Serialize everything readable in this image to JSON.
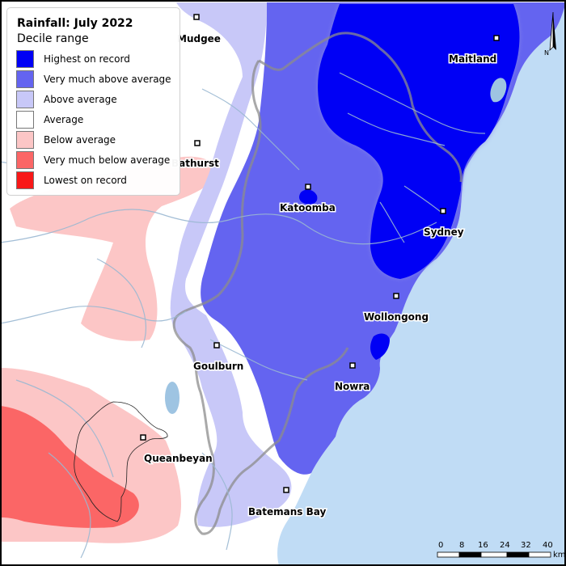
{
  "map": {
    "title": "Rainfall: July 2022",
    "subtitle": "Decile range",
    "legend": [
      {
        "label": "Highest on record",
        "color": "#0000f5"
      },
      {
        "label": "Very much above average",
        "color": "#6464f0"
      },
      {
        "label": "Above average",
        "color": "#c8c8f8"
      },
      {
        "label": "Average",
        "color": "#ffffff"
      },
      {
        "label": "Below average",
        "color": "#fcc6c6"
      },
      {
        "label": "Very much below average",
        "color": "#fb6666"
      },
      {
        "label": "Lowest on record",
        "color": "#f81818"
      }
    ],
    "towns": [
      {
        "name": "Mudgee"
      },
      {
        "name": "Maitland"
      },
      {
        "name": "Bathurst"
      },
      {
        "name": "Katoomba"
      },
      {
        "name": "Sydney"
      },
      {
        "name": "Wollongong"
      },
      {
        "name": "Goulburn"
      },
      {
        "name": "Nowra"
      },
      {
        "name": "Queanbeyan"
      },
      {
        "name": "Batemans Bay"
      }
    ],
    "north_label": "N",
    "scale": {
      "ticks": [
        "0",
        "8",
        "16",
        "24",
        "32",
        "40"
      ],
      "unit": "km"
    },
    "colors": {
      "ocean": "#c0dcf5",
      "land": "#ffffff",
      "rivers": "#9ab8d2"
    }
  }
}
